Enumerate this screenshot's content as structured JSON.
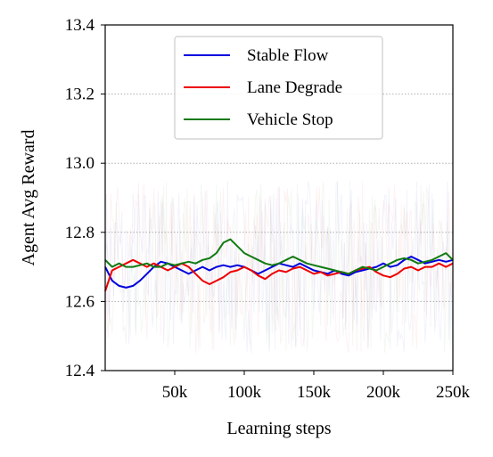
{
  "chart_data": {
    "type": "line",
    "xlabel": "Learning steps",
    "ylabel": "Agent Avg Reward",
    "xlim": [
      0,
      250000
    ],
    "ylim": [
      12.4,
      13.4
    ],
    "xticks": [
      50000,
      100000,
      150000,
      200000,
      250000
    ],
    "xtick_labels": [
      "50k",
      "100k",
      "150k",
      "200k",
      "250k"
    ],
    "yticks": [
      12.4,
      12.6,
      12.8,
      13.0,
      13.2,
      13.4
    ],
    "ytick_labels": [
      "12.4",
      "12.6",
      "12.8",
      "13.0",
      "13.2",
      "13.4"
    ],
    "grid": "horizontal dotted",
    "legend_position": "top-center",
    "series": [
      {
        "name": "Stable Flow",
        "color": "#0000dd",
        "x": [
          0,
          5000,
          10000,
          15000,
          20000,
          25000,
          30000,
          35000,
          40000,
          45000,
          50000,
          55000,
          60000,
          65000,
          70000,
          75000,
          80000,
          85000,
          90000,
          95000,
          100000,
          105000,
          110000,
          115000,
          120000,
          125000,
          130000,
          135000,
          140000,
          145000,
          150000,
          155000,
          160000,
          165000,
          170000,
          175000,
          180000,
          185000,
          190000,
          195000,
          200000,
          205000,
          210000,
          215000,
          220000,
          225000,
          230000,
          235000,
          240000,
          245000,
          250000
        ],
        "values": [
          12.7,
          12.66,
          12.645,
          12.64,
          12.645,
          12.66,
          12.68,
          12.7,
          12.715,
          12.71,
          12.7,
          12.69,
          12.68,
          12.69,
          12.7,
          12.69,
          12.7,
          12.705,
          12.7,
          12.705,
          12.7,
          12.69,
          12.68,
          12.69,
          12.7,
          12.71,
          12.705,
          12.7,
          12.71,
          12.7,
          12.69,
          12.685,
          12.68,
          12.69,
          12.68,
          12.675,
          12.685,
          12.69,
          12.695,
          12.7,
          12.71,
          12.7,
          12.705,
          12.72,
          12.73,
          12.72,
          12.71,
          12.715,
          12.72,
          12.715,
          12.72
        ]
      },
      {
        "name": "Lane Degrade",
        "color": "#ee0000",
        "x": [
          0,
          5000,
          10000,
          15000,
          20000,
          25000,
          30000,
          35000,
          40000,
          45000,
          50000,
          55000,
          60000,
          65000,
          70000,
          75000,
          80000,
          85000,
          90000,
          95000,
          100000,
          105000,
          110000,
          115000,
          120000,
          125000,
          130000,
          135000,
          140000,
          145000,
          150000,
          155000,
          160000,
          165000,
          170000,
          175000,
          180000,
          185000,
          190000,
          195000,
          200000,
          205000,
          210000,
          215000,
          220000,
          225000,
          230000,
          235000,
          240000,
          245000,
          250000
        ],
        "values": [
          12.63,
          12.69,
          12.7,
          12.71,
          12.72,
          12.71,
          12.7,
          12.71,
          12.7,
          12.69,
          12.7,
          12.71,
          12.7,
          12.68,
          12.66,
          12.65,
          12.66,
          12.67,
          12.685,
          12.69,
          12.7,
          12.69,
          12.675,
          12.665,
          12.68,
          12.69,
          12.685,
          12.695,
          12.7,
          12.69,
          12.68,
          12.685,
          12.675,
          12.68,
          12.685,
          12.68,
          12.69,
          12.695,
          12.7,
          12.685,
          12.675,
          12.67,
          12.68,
          12.695,
          12.7,
          12.69,
          12.7,
          12.7,
          12.71,
          12.7,
          12.71
        ]
      },
      {
        "name": "Vehicle Stop",
        "color": "#117a11",
        "x": [
          0,
          5000,
          10000,
          15000,
          20000,
          25000,
          30000,
          35000,
          40000,
          45000,
          50000,
          55000,
          60000,
          65000,
          70000,
          75000,
          80000,
          85000,
          90000,
          95000,
          100000,
          105000,
          110000,
          115000,
          120000,
          125000,
          130000,
          135000,
          140000,
          145000,
          150000,
          155000,
          160000,
          165000,
          170000,
          175000,
          180000,
          185000,
          190000,
          195000,
          200000,
          205000,
          210000,
          215000,
          220000,
          225000,
          230000,
          235000,
          240000,
          245000,
          250000
        ],
        "values": [
          12.72,
          12.7,
          12.71,
          12.7,
          12.7,
          12.705,
          12.71,
          12.7,
          12.7,
          12.71,
          12.705,
          12.71,
          12.715,
          12.71,
          12.72,
          12.725,
          12.74,
          12.77,
          12.78,
          12.76,
          12.74,
          12.73,
          12.72,
          12.71,
          12.705,
          12.71,
          12.72,
          12.73,
          12.72,
          12.71,
          12.705,
          12.7,
          12.695,
          12.69,
          12.685,
          12.68,
          12.69,
          12.7,
          12.695,
          12.69,
          12.7,
          12.71,
          12.72,
          12.725,
          12.72,
          12.71,
          12.715,
          12.72,
          12.73,
          12.74,
          12.72
        ]
      }
    ]
  }
}
